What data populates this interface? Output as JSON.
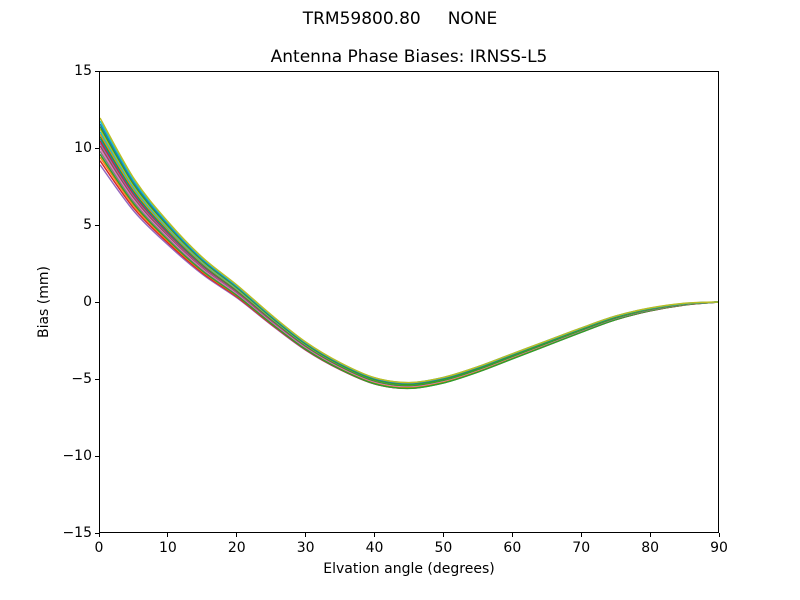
{
  "figure": {
    "suptitle": "TRM59800.80     NONE",
    "background_color": "#ffffff",
    "text_color": "#000000"
  },
  "chart_data": {
    "type": "line",
    "suptitle": "TRM59800.80     NONE",
    "title": "Antenna Phase Biases: IRNSS-L5",
    "xlabel": "Elvation angle (degrees)",
    "ylabel": "Bias (mm)",
    "xlim": [
      0,
      90
    ],
    "ylim": [
      -15,
      15
    ],
    "xticks": [
      0,
      10,
      20,
      30,
      40,
      50,
      60,
      70,
      80,
      90
    ],
    "xtick_labels": [
      "0",
      "10",
      "20",
      "30",
      "40",
      "50",
      "60",
      "70",
      "80",
      "90"
    ],
    "yticks": [
      15,
      10,
      5,
      0,
      -5,
      -10,
      -15
    ],
    "ytick_labels": [
      "15",
      "10",
      "5",
      "0",
      "−5",
      "−10",
      "−15"
    ],
    "grid": false,
    "legend": null,
    "n_lines": 18,
    "x": [
      0,
      5,
      10,
      15,
      20,
      25,
      30,
      35,
      40,
      45,
      50,
      55,
      60,
      65,
      70,
      75,
      80,
      85,
      90
    ],
    "bundle_center": [
      10.4,
      6.9,
      4.4,
      2.3,
      0.65,
      -1.2,
      -2.9,
      -4.2,
      -5.15,
      -5.45,
      -5.1,
      -4.4,
      -3.55,
      -2.7,
      -1.85,
      -1.05,
      -0.5,
      -0.15,
      0.0
    ],
    "bundle_start_range": [
      8.8,
      12.0
    ],
    "bundle_min": -5.6,
    "bundle_min_x": 43,
    "bundle_end_value": 0.0,
    "spread_model": {
      "base": 0.1,
      "amp": 0.9,
      "decay_deg": 12,
      "converge_power": 8,
      "dip_center_deg": 55,
      "dip_width_deg": 35
    },
    "line_width": 1.5,
    "series": [
      {
        "color": "#bcbd22",
        "offset": 1.6,
        "dip": 0.0
      },
      {
        "color": "#17becf",
        "offset": 1.4,
        "dip": 0.02
      },
      {
        "color": "#1f77b4",
        "offset": 1.22,
        "dip": 0.0
      },
      {
        "color": "#2ca02c",
        "offset": 1.05,
        "dip": -0.06
      },
      {
        "color": "#bcbd22",
        "offset": 0.88,
        "dip": 0.0
      },
      {
        "color": "#17becf",
        "offset": 0.7,
        "dip": 0.0
      },
      {
        "color": "#ff7f0e",
        "offset": 0.55,
        "dip": 0.0
      },
      {
        "color": "#2ca02c",
        "offset": 0.4,
        "dip": -0.05
      },
      {
        "color": "#1f77b4",
        "offset": 0.25,
        "dip": 0.0
      },
      {
        "color": "#d62728",
        "offset": 0.1,
        "dip": 0.0
      },
      {
        "color": "#9467bd",
        "offset": -0.05,
        "dip": 0.0
      },
      {
        "color": "#8c564b",
        "offset": -0.22,
        "dip": 0.03
      },
      {
        "color": "#e377c2",
        "offset": -0.4,
        "dip": 0.0
      },
      {
        "color": "#7f7f7f",
        "offset": -0.58,
        "dip": 0.04
      },
      {
        "color": "#2ca02c",
        "offset": -0.76,
        "dip": -0.1
      },
      {
        "color": "#ff7f0e",
        "offset": -0.95,
        "dip": -0.02
      },
      {
        "color": "#d62728",
        "offset": -1.18,
        "dip": -0.04
      },
      {
        "color": "#9467bd",
        "offset": -1.45,
        "dip": 0.0
      }
    ]
  }
}
